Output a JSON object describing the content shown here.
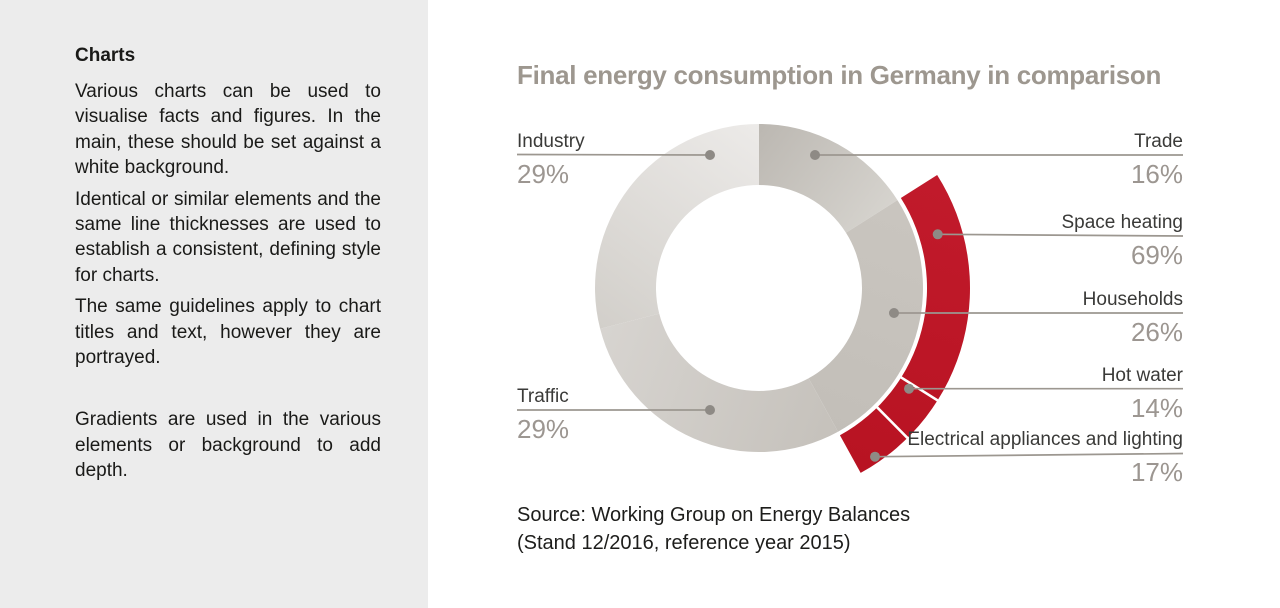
{
  "sidebar": {
    "heading": "Charts",
    "paragraphs": [
      "Various charts can be used to visualise facts and figures. In the main, these should be set against a white background.",
      "Identical or similar elements and the same line thicknesses are used to establish a consistent, defining style for charts.",
      "The same guidelines apply to chart titles and text, however they are portrayed.",
      "Gradients are used in the various elements or background to add depth."
    ]
  },
  "main": {
    "title": "Final energy consumption in Germany in comparison",
    "source": [
      "Source: Working Group on Energy Balances",
      "(Stand 12/2016, reference year 2015)"
    ]
  },
  "callouts": {
    "industry": {
      "name": "Industry",
      "pct": "29%"
    },
    "trade": {
      "name": "Trade",
      "pct": "16%"
    },
    "space_heating": {
      "name": "Space heating",
      "pct": "69%"
    },
    "households": {
      "name": "Households",
      "pct": "26%"
    },
    "hot_water": {
      "name": "Hot water",
      "pct": "14%"
    },
    "electrical": {
      "name": "Electrical appliances and lighting",
      "pct": "17%"
    },
    "traffic": {
      "name": "Traffic",
      "pct": "29%"
    }
  },
  "chart_data": {
    "type": "donut",
    "title": "Final energy consumption in Germany in comparison",
    "unit": "%",
    "direction": "clockwise",
    "start_angle_deg": 0,
    "segments": [
      {
        "label": "Trade",
        "value": 16
      },
      {
        "label": "Households",
        "value": 26
      },
      {
        "label": "Traffic",
        "value": 29
      },
      {
        "label": "Industry",
        "value": 29
      }
    ],
    "sub_breakdown": {
      "parent": "Households",
      "segments": [
        {
          "label": "Space heating",
          "value": 69
        },
        {
          "label": "Hot water",
          "value": 14
        },
        {
          "label": "Electrical appliances and lighting",
          "value": 17
        }
      ]
    },
    "source": "Source: Working Group on Energy Balances (Stand 12/2016, reference year 2015)",
    "colors": {
      "trade": [
        "#bcb8b2",
        "#e0ded9"
      ],
      "households": [
        "#c9c5bf",
        "#c2beb8"
      ],
      "traffic": [
        "#c5c1bb",
        "#d7d4d0"
      ],
      "industry": [
        "#eceae8",
        "#d2cfca"
      ],
      "sub": [
        "#c11a2b",
        "#b81322"
      ],
      "accent_red": "#be1627",
      "connector": "#9c9790",
      "dot": "#8e8a85",
      "label_text": "#3a3a38",
      "pct_text": "#9c9691",
      "title_text": "#9d978f",
      "sidebar_bg": "#ececec"
    }
  }
}
